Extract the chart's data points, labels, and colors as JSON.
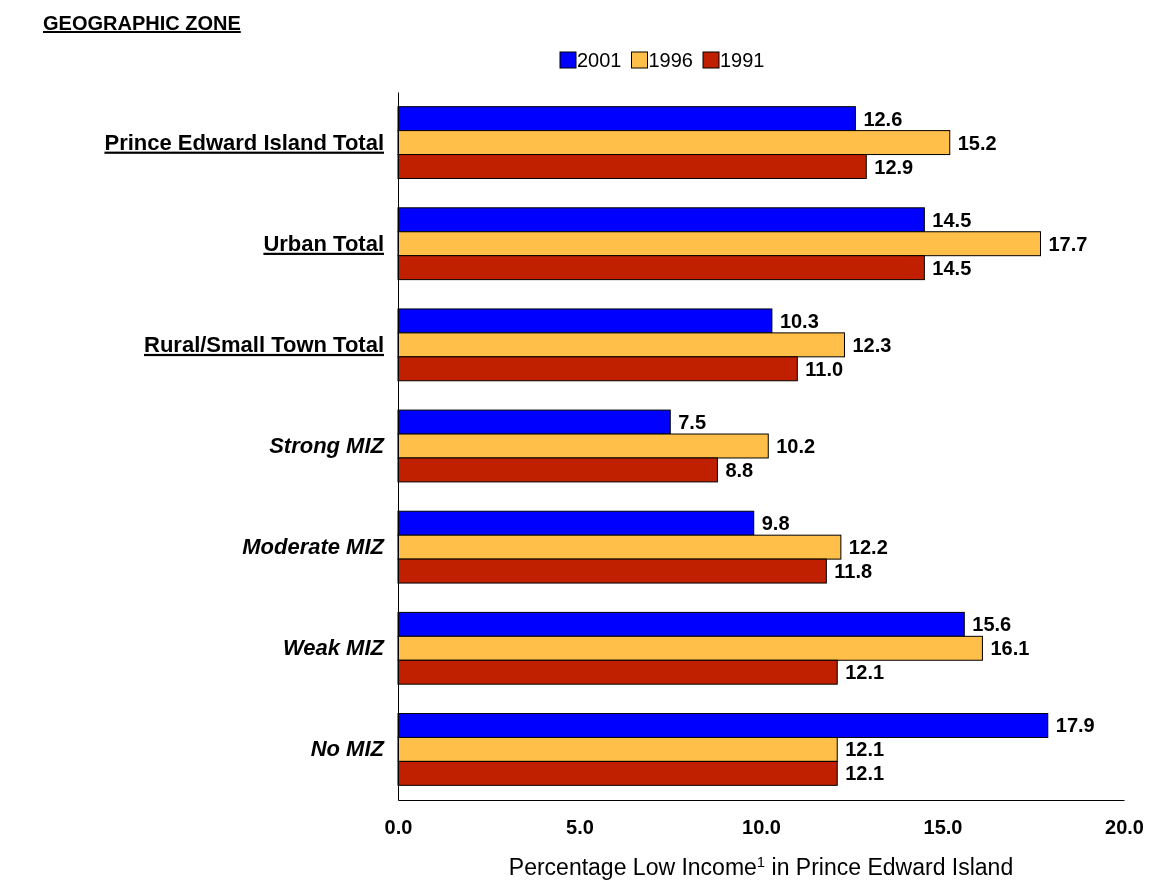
{
  "chart_data": {
    "type": "bar",
    "orientation": "horizontal",
    "ylabel": "GEOGRAPHIC ZONE",
    "xlabel": "Percentage Low Income$^{1}$ in Prince Edward Island",
    "categories": [
      "Prince Edward Island Total",
      "Urban Total",
      "Rural/Small Town Total",
      "Strong MIZ",
      "Moderate MIZ",
      "Weak MIZ",
      "No MIZ"
    ],
    "series": [
      {
        "name": "2001",
        "color": "#0000ff",
        "values": [
          12.6,
          14.5,
          10.3,
          7.5,
          9.8,
          15.6,
          17.9
        ],
        "value_labels": [
          "12.6",
          "14.5",
          "10.3",
          "7.5",
          "9.8",
          "15.6",
          "17.9"
        ]
      },
      {
        "name": "1996",
        "color": "#ffbf48",
        "values": [
          15.2,
          17.7,
          12.3,
          10.2,
          12.2,
          16.1,
          12.1
        ],
        "value_labels": [
          "15.2",
          "17.7",
          "12.3",
          "10.2",
          "12.2",
          "16.1",
          "12.1"
        ]
      },
      {
        "name": "1991",
        "color": "#c02000",
        "values": [
          12.9,
          14.5,
          11.0,
          8.8,
          11.8,
          12.1,
          12.1
        ],
        "value_labels": [
          "12.9",
          "14.5",
          "11.0",
          "8.8",
          "11.8",
          "12.1",
          "12.1"
        ]
      }
    ],
    "xlim": [
      0,
      20
    ],
    "xticks": [
      {
        "value": 0,
        "label": "0.0"
      },
      {
        "value": 5,
        "label": "5.0"
      },
      {
        "value": 10,
        "label": "10.0"
      },
      {
        "value": 15,
        "label": "15.0"
      },
      {
        "value": 20,
        "label": "20.0"
      }
    ],
    "grid": false,
    "legend": "top"
  }
}
